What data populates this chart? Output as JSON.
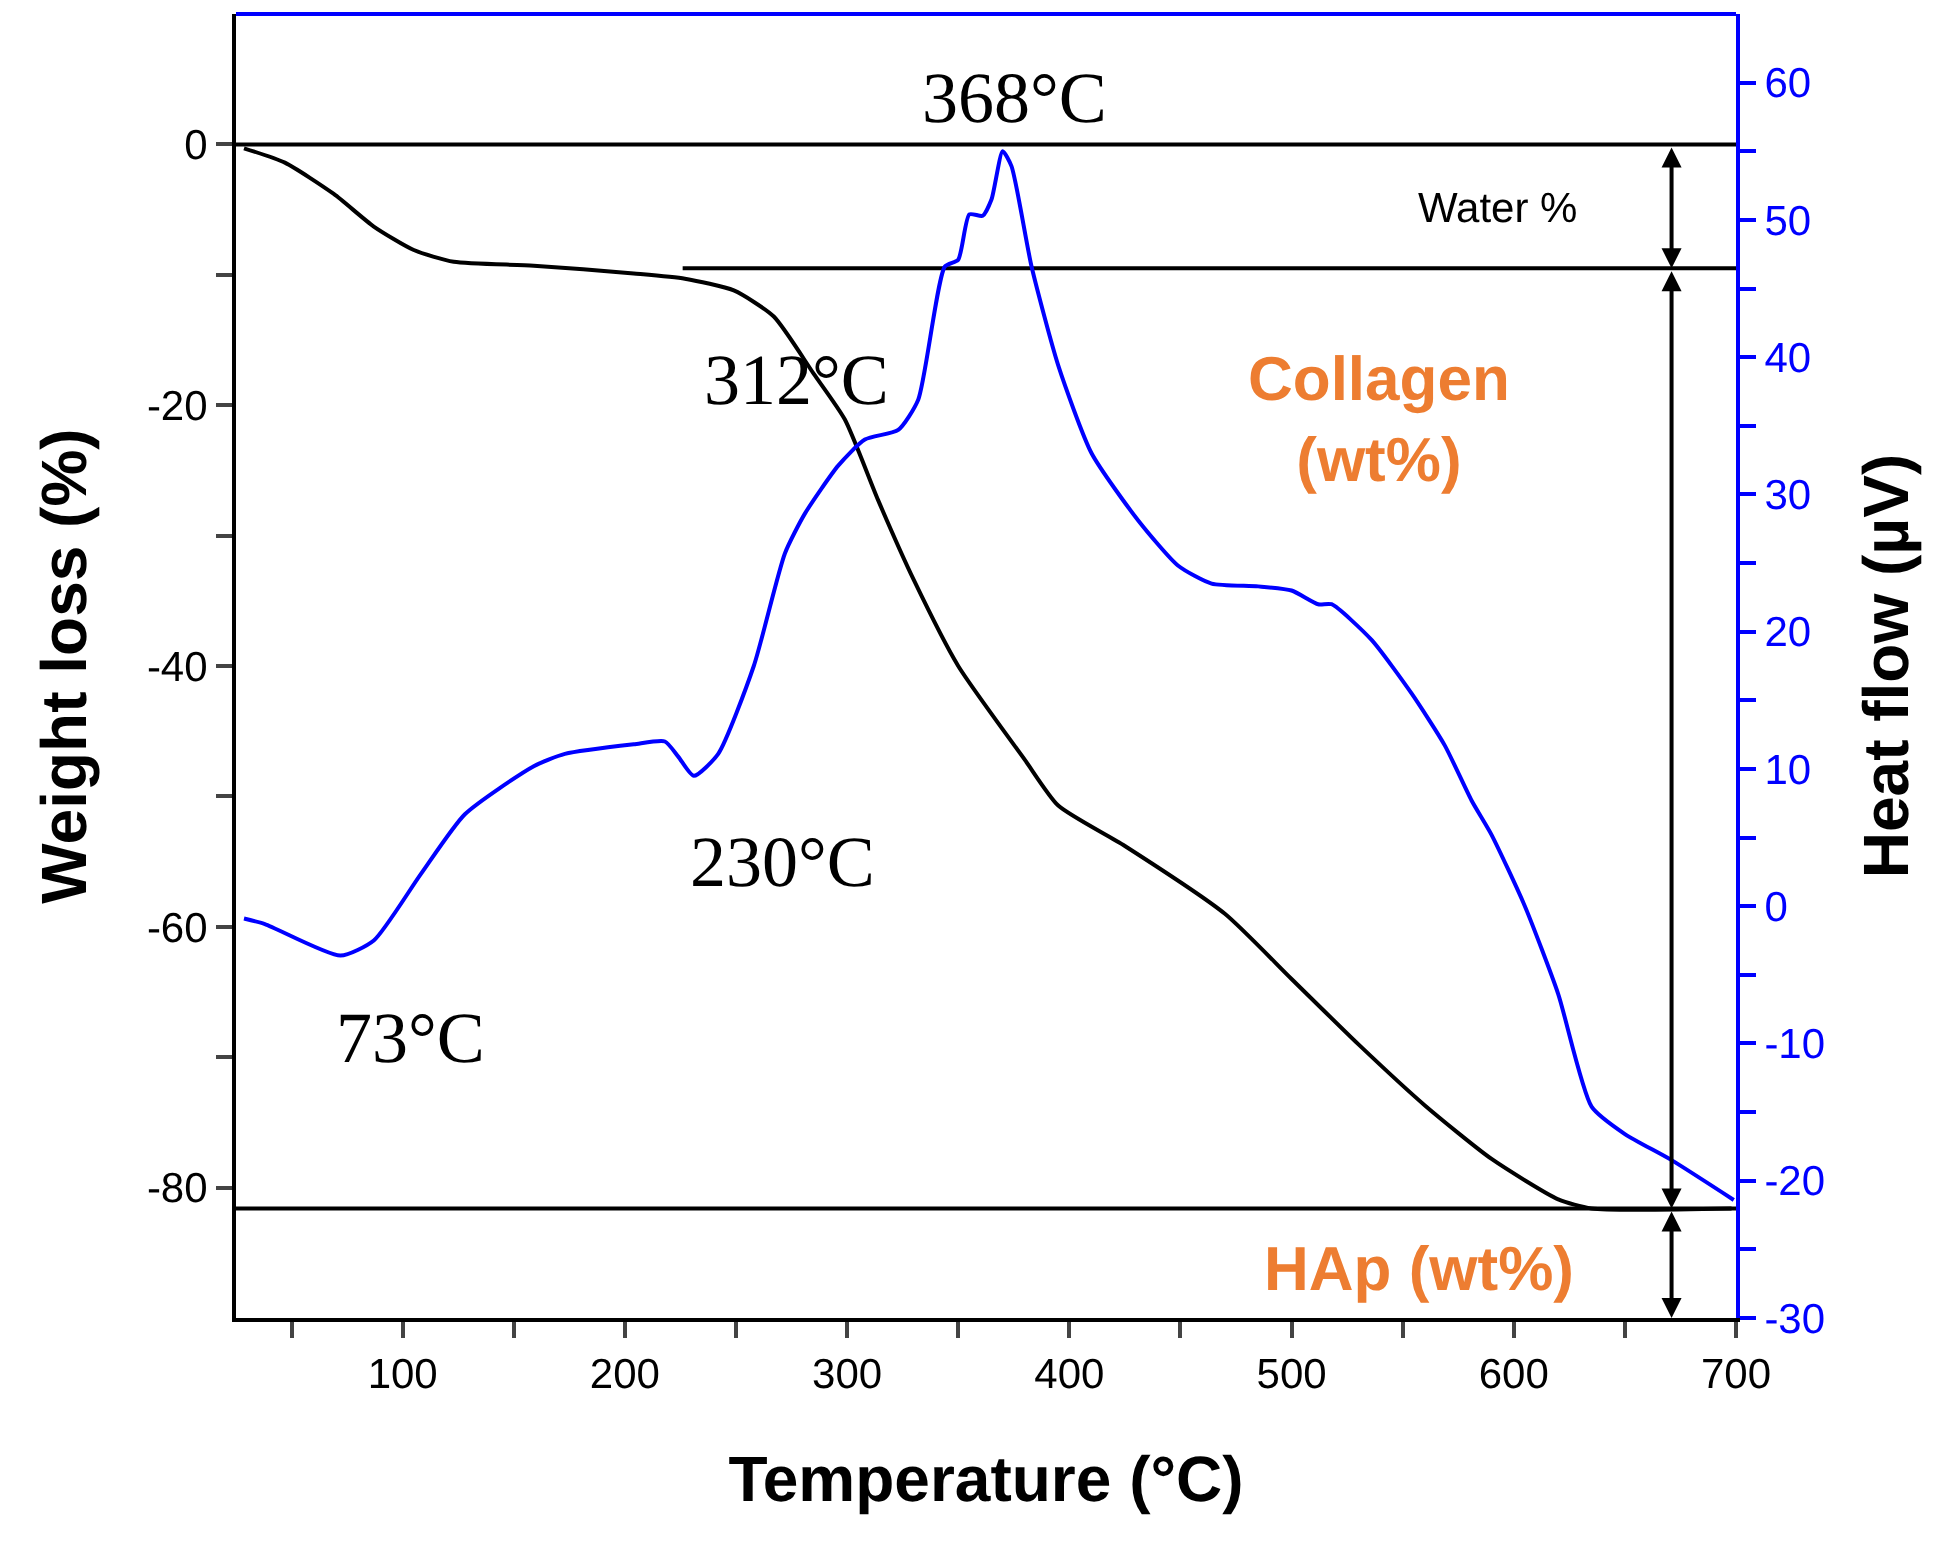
{
  "chart_data": {
    "type": "line",
    "xlabel": "Temperature (°C)",
    "ylabel": "Weight loss (%)",
    "y2label": "Heat flow (µV)",
    "xlim": [
      25,
      700
    ],
    "ylim": [
      -90,
      10
    ],
    "y2lim": [
      -30,
      65
    ],
    "xticks": [
      {
        "value": 50,
        "label": null
      },
      100,
      {
        "value": 150,
        "label": null
      },
      200,
      {
        "value": 250,
        "label": null
      },
      300,
      {
        "value": 350,
        "label": null
      },
      400,
      {
        "value": 450,
        "label": null
      },
      500,
      {
        "value": 550,
        "label": null
      },
      600,
      {
        "value": 650,
        "label": null
      },
      700
    ],
    "yticks": [
      -80,
      {
        "value": -70,
        "label": null
      },
      -60,
      {
        "value": -50,
        "label": null
      },
      -40,
      {
        "value": -30,
        "label": null
      },
      -20,
      {
        "value": -10,
        "label": null
      },
      0
    ],
    "y2ticks": [
      -30,
      {
        "value": -25,
        "label": null
      },
      -20,
      {
        "value": -15,
        "label": null
      },
      -10,
      {
        "value": -5,
        "label": null
      },
      0,
      {
        "value": 5,
        "label": null
      },
      10,
      {
        "value": 15,
        "label": null
      },
      20,
      {
        "value": 25,
        "label": null
      },
      30,
      {
        "value": 35,
        "label": null
      },
      40,
      {
        "value": 45,
        "label": null
      },
      50,
      {
        "value": 55,
        "label": null
      },
      60
    ],
    "marker": "none",
    "line_style": "solid",
    "series": [
      {
        "color": "#000000",
        "x": [
          28.6,
          47,
          69,
          87,
          105,
          123,
          159,
          204,
          227,
          249,
          267,
          285,
          299,
          314,
          330,
          350,
          380,
          395,
          425,
          470,
          500,
          530,
          560,
          590,
          620,
          635,
          698
        ],
        "values": [
          -0.3,
          -1.4,
          -3.8,
          -6.3,
          -8.1,
          -9.0,
          -9.3,
          -9.9,
          -10.3,
          -11.2,
          -13.2,
          -17.6,
          -21.1,
          -27.3,
          -33.4,
          -40,
          -47.2,
          -50.7,
          -53.8,
          -59,
          -64,
          -69,
          -73.7,
          -77.8,
          -80.9,
          -81.6,
          -81.6
        ]
      },
      {
        "color": "#0000ff",
        "axis": "y2",
        "x": [
          28.6,
          38,
          72,
          87,
          108,
          128,
          159,
          173,
          204,
          218,
          224,
          231,
          242,
          258,
          272,
          281,
          296,
          308,
          323,
          332,
          344,
          350,
          355,
          361,
          365,
          370,
          374,
          383,
          395,
          410,
          431,
          449,
          464,
          485,
          500,
          512,
          518,
          536,
          554,
          569,
          581,
          590,
          605,
          620,
          635,
          650,
          671,
          699
        ],
        "values": [
          -0.9,
          -1.3,
          -3.6,
          -2.5,
          2.3,
          6.7,
          10.2,
          11.1,
          11.8,
          12.0,
          10.9,
          9.5,
          11.1,
          17.5,
          25.7,
          28.6,
          32.1,
          34.0,
          34.7,
          36.9,
          46.6,
          47.1,
          50.4,
          50.3,
          51.5,
          55.0,
          53.9,
          46.6,
          39.4,
          33.0,
          28.1,
          24.8,
          23.5,
          23.3,
          23.0,
          22.0,
          22.0,
          19.4,
          15.5,
          11.7,
          7.7,
          5.2,
          0,
          -6.4,
          -14.6,
          -16.6,
          -18.5,
          -21.4
        ]
      },
      {
        "color": "#000000",
        "x": [
          226,
          700
        ],
        "values": [
          -9.5,
          -9.5
        ]
      }
    ],
    "ref_lines": [
      {
        "axis": "y",
        "value": 0,
        "color": "#000000"
      },
      {
        "axis": "y",
        "value": -81.6,
        "color": "#000000"
      }
    ],
    "annotations": [
      "368°C",
      "312°C",
      "230°C",
      "73°C",
      "Water %",
      "Collagen\n(wt%)",
      "HAp (wt%)"
    ]
  }
}
